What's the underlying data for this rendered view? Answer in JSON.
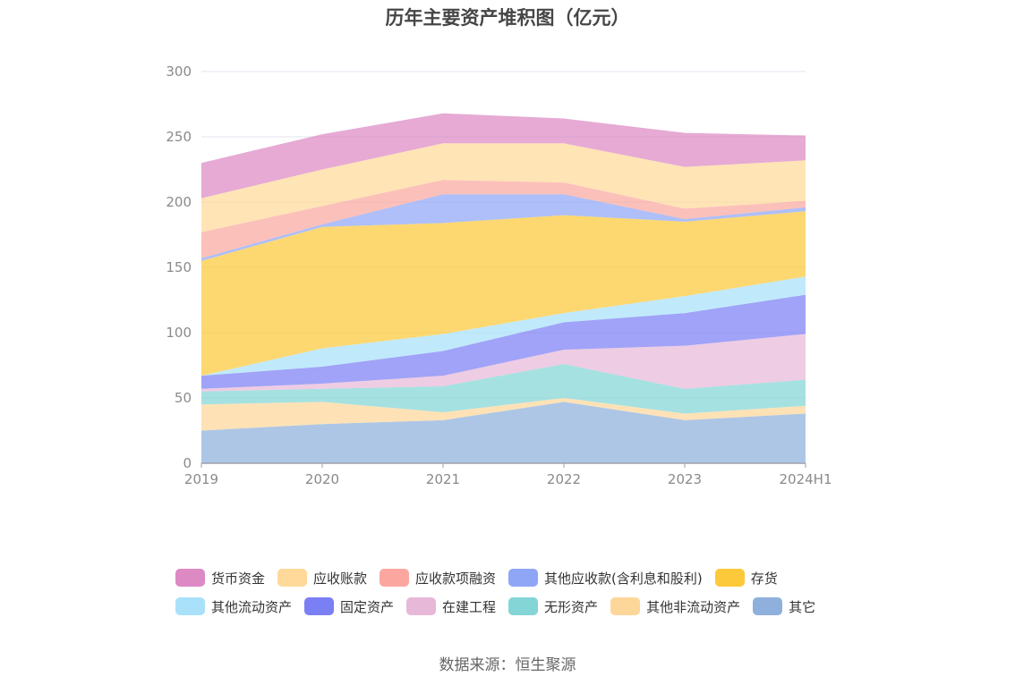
{
  "chart_data": {
    "type": "area",
    "stacked": true,
    "title": "历年主要资产堆积图（亿元）",
    "categories": [
      "2019",
      "2020",
      "2021",
      "2022",
      "2023",
      "2024H1"
    ],
    "ylim": [
      0,
      300
    ],
    "yticks": [
      0,
      50,
      100,
      150,
      200,
      250,
      300
    ],
    "grid": true,
    "legend_position": "bottom",
    "series": [
      {
        "name": "其它",
        "color": "#8fb0dc",
        "values": [
          25,
          30,
          33,
          47,
          33,
          38
        ]
      },
      {
        "name": "其他非流动资产",
        "color": "#fdd79a",
        "values": [
          20,
          17,
          6,
          3,
          5,
          6
        ]
      },
      {
        "name": "无形资产",
        "color": "#84d5d5",
        "values": [
          10,
          10,
          20,
          26,
          19,
          20
        ]
      },
      {
        "name": "在建工程",
        "color": "#e8b8d8",
        "values": [
          2,
          4,
          8,
          11,
          33,
          35
        ]
      },
      {
        "name": "固定资产",
        "color": "#7b7ff4",
        "values": [
          10,
          13,
          19,
          21,
          25,
          30
        ]
      },
      {
        "name": "其他流动资产",
        "color": "#a9e1fb",
        "values": [
          0,
          14,
          13,
          7,
          13,
          14
        ]
      },
      {
        "name": "存货",
        "color": "#fcc93a",
        "values": [
          88,
          93,
          85,
          75,
          57,
          50
        ]
      },
      {
        "name": "其他应收款(含利息和股利)",
        "color": "#8fa6f6",
        "values": [
          2,
          2,
          22,
          16,
          2,
          3
        ]
      },
      {
        "name": "应收款项融资",
        "color": "#fba7a0",
        "values": [
          20,
          14,
          11,
          9,
          8,
          5
        ]
      },
      {
        "name": "应收账款",
        "color": "#ffd99a",
        "values": [
          26,
          28,
          28,
          30,
          32,
          31
        ]
      },
      {
        "name": "货币资金",
        "color": "#dd89c4",
        "values": [
          27,
          27,
          23,
          19,
          26,
          19
        ]
      }
    ],
    "legend_order": [
      "货币资金",
      "应收账款",
      "应收款项融资",
      "其他应收款(含利息和股利)",
      "存货",
      "其他流动资产",
      "固定资产",
      "在建工程",
      "无形资产",
      "其他非流动资产",
      "其它"
    ]
  },
  "source": "数据来源：恒生聚源"
}
